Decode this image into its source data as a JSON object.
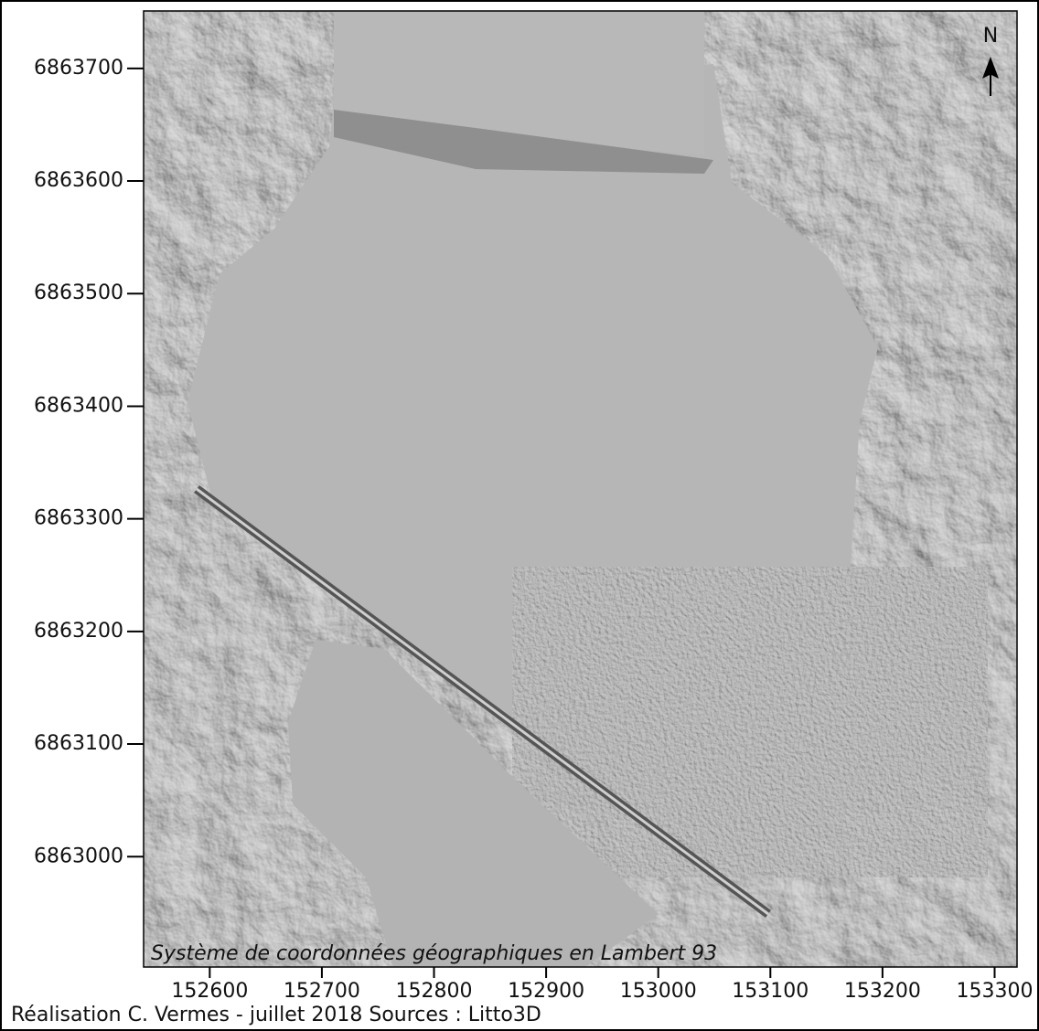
{
  "map": {
    "xlim": [
      152541,
      153320
    ],
    "ylim": [
      6862902,
      6863751
    ],
    "xticks": [
      152600,
      152700,
      152800,
      152900,
      153000,
      153100,
      153200,
      153300
    ],
    "yticks": [
      6863000,
      6863100,
      6863200,
      6863300,
      6863400,
      6863500,
      6863600,
      6863700
    ],
    "north": "N",
    "coordinate_note": "Système de coordonnées géographiques en Lambert 93",
    "credit": "Réalisation C. Vermes - juillet 2018  Sources : Litto3D"
  }
}
